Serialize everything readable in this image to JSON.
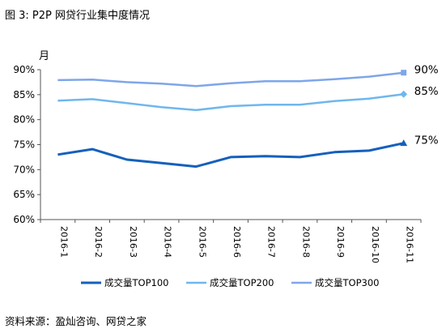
{
  "figure": {
    "title": "图 3: P2P 网贷行业集中度情况",
    "source": "资料来源：盈灿咨询、网贷之家"
  },
  "chart_data": {
    "type": "line",
    "title": "",
    "xlabel": "",
    "ylabel": "月",
    "ylim": [
      60,
      90
    ],
    "y_ticks": [
      "60%",
      "65%",
      "70%",
      "75%",
      "80%",
      "85%",
      "90%"
    ],
    "grid": false,
    "legend_position": "bottom",
    "categories": [
      "2016-1",
      "2016-2",
      "2016-3",
      "2016-4",
      "2016-5",
      "2016-6",
      "2016-7",
      "2016-8",
      "2016-9",
      "2016-10",
      "2016-11"
    ],
    "series": [
      {
        "name": "成交量TOP100",
        "color": "#1560bd",
        "marker": "triangle",
        "end_label": "75%",
        "values": [
          73.0,
          74.1,
          72.0,
          71.3,
          70.6,
          72.5,
          72.7,
          72.5,
          73.5,
          73.8,
          75.3
        ]
      },
      {
        "name": "成交量TOP200",
        "color": "#6fb7ee",
        "marker": "diamond",
        "end_label": "85%",
        "values": [
          83.8,
          84.1,
          83.3,
          82.5,
          81.9,
          82.7,
          83.0,
          83.0,
          83.7,
          84.2,
          85.1
        ]
      },
      {
        "name": "成交量TOP300",
        "color": "#7ea6ea",
        "marker": "square",
        "end_label": "90%",
        "values": [
          87.9,
          88.0,
          87.5,
          87.2,
          86.7,
          87.3,
          87.7,
          87.7,
          88.1,
          88.6,
          89.4
        ]
      }
    ]
  }
}
